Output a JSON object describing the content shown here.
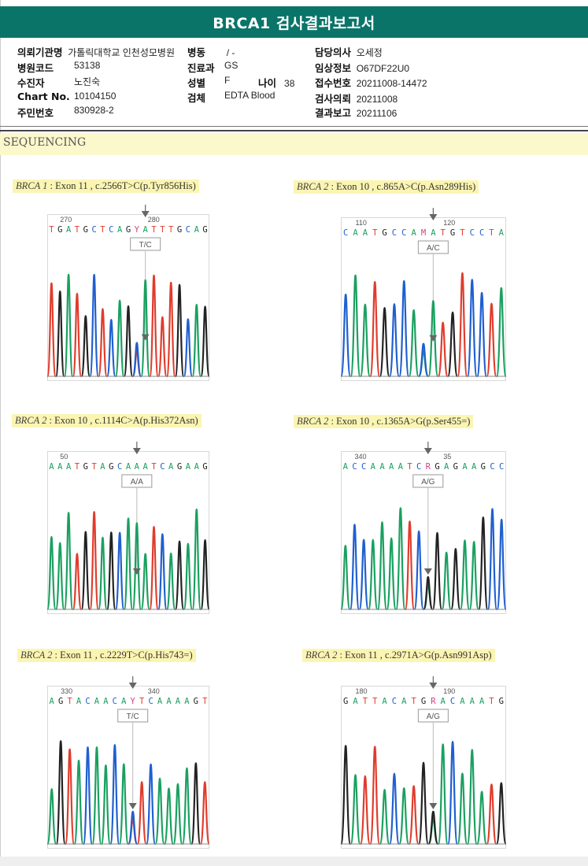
{
  "title": "BRCA1 검사결과보고서",
  "section_title": "SEQUENCING",
  "info": [
    {
      "label": "의뢰기관명",
      "value": "가톨릭대학교 인천성모병원"
    },
    {
      "label": "병동",
      "value": "/ -"
    },
    {
      "label": "담당의사",
      "value": "오세정"
    },
    {
      "label": "병원코드",
      "value": "53138"
    },
    {
      "label": "진료과",
      "value": "GS"
    },
    {
      "label": "임상정보",
      "value": "O67DF22U0"
    },
    {
      "label": "수진자",
      "value": "노진숙"
    },
    {
      "label": "성별",
      "value": "F"
    },
    {
      "label": "나이",
      "value": "38"
    },
    {
      "label": "접수번호",
      "value": "20211008-14472"
    },
    {
      "label": "Chart No.",
      "value": "10104150"
    },
    {
      "label": "검체",
      "value": "EDTA Blood"
    },
    {
      "label": "검사의뢰",
      "value": "20211008"
    },
    {
      "label": "주민번호",
      "value": "830928-2"
    },
    {
      "label": "결과보고",
      "value": "20211106"
    }
  ],
  "colors": {
    "A": "#1aa060",
    "C": "#1f5fd0",
    "G": "#222222",
    "T": "#e03c2c",
    "header": "#0b7468",
    "caption_bg": "#fbf5b2"
  },
  "panels": [
    {
      "gene": "BRCA 1",
      "detail": " : Exon 11 , c.2566T>C(p.Tyr856His)",
      "tick1": "270",
      "tick2": "280",
      "sequence": "TGATGCTCAGYATTTGCAG",
      "call": "T/C",
      "focus": 11
    },
    {
      "gene": "BRCA 2",
      "detail": " : Exon 10 , c.865A>C(p.Asn289His)",
      "tick1": "110",
      "tick2": "120",
      "sequence": "CAATGCCAMATGTCCTA",
      "call": "A/C",
      "focus": 9
    },
    {
      "gene": "BRCA 2",
      "detail": " : Exon 10 , c.1114C>A(p.His372Asn)",
      "tick1": "50",
      "tick2": "",
      "sequence": "AAATGTAGCAAATCAGAAG",
      "call": "A/A",
      "focus": 10
    },
    {
      "gene": "BRCA 2",
      "detail": " : Exon 10 , c.1365A>G(p.Ser455=)",
      "tick1": "340",
      "tick2": "35",
      "sequence": "ACCAAAATCRGAGAAGCC",
      "call": "A/G",
      "focus": 9
    },
    {
      "gene": "BRCA 2",
      "detail": " : Exon 11 , c.2229T>C(p.His743=)",
      "tick1": "330",
      "tick2": "340",
      "sequence": "AGTACAACAYTCAAAAGT",
      "call": "T/C",
      "focus": 9
    },
    {
      "gene": "BRCA 2",
      "detail": " : Exon 11 , c.2971A>G(p.Asn991Asp)",
      "tick1": "180",
      "tick2": "190",
      "sequence": "GATTACATGRACAAATG",
      "call": "A/G",
      "focus": 9
    }
  ]
}
